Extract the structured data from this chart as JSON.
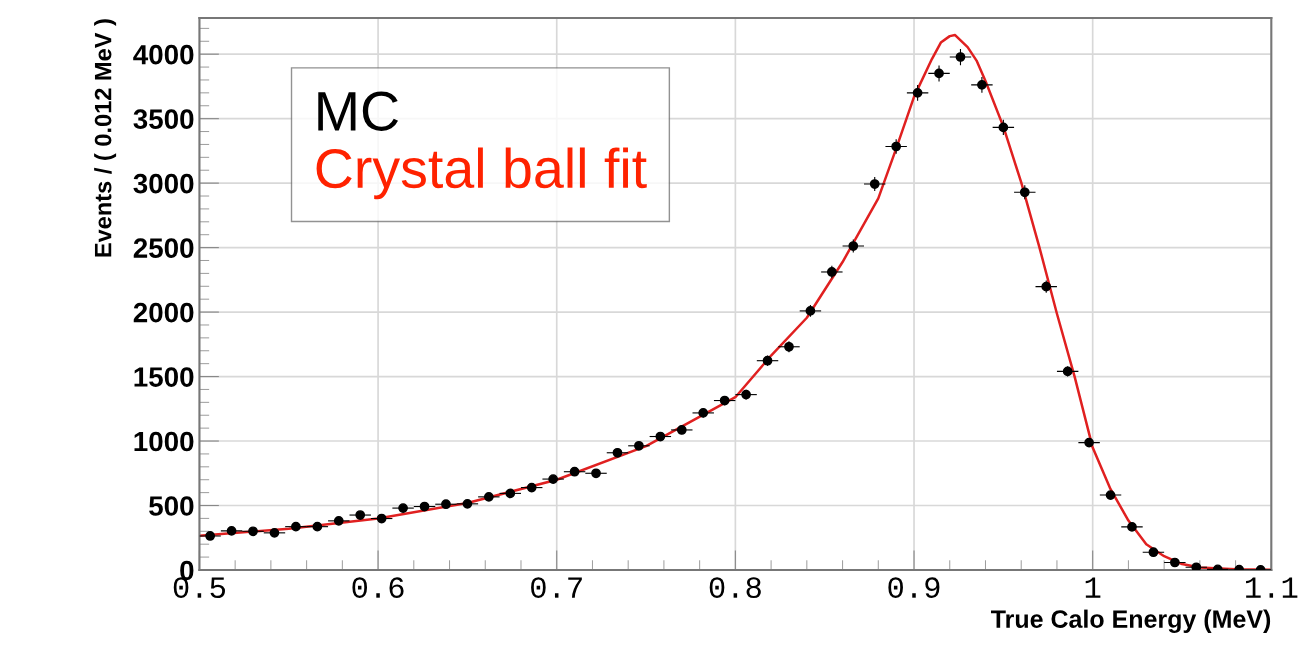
{
  "chart_data": {
    "type": "scatter",
    "xlabel": "True Calo Energy (MeV)",
    "ylabel": "Events / ( 0.012 MeV )",
    "x": [
      0.506,
      0.518,
      0.53,
      0.542,
      0.554,
      0.566,
      0.578,
      0.59,
      0.602,
      0.614,
      0.626,
      0.638,
      0.65,
      0.662,
      0.674,
      0.686,
      0.698,
      0.71,
      0.722,
      0.734,
      0.746,
      0.758,
      0.77,
      0.782,
      0.794,
      0.806,
      0.818,
      0.83,
      0.842,
      0.854,
      0.866,
      0.878,
      0.89,
      0.902,
      0.914,
      0.926,
      0.938,
      0.95,
      0.962,
      0.974,
      0.986,
      0.998,
      1.01,
      1.022,
      1.034,
      1.046,
      1.058,
      1.07,
      1.082,
      1.094
    ],
    "series": [
      {
        "name": "MC",
        "color": "#000000",
        "marker": "circle",
        "values": [
          264,
          303,
          300,
          288,
          336,
          336,
          381,
          426,
          399,
          480,
          492,
          510,
          513,
          567,
          594,
          639,
          705,
          762,
          750,
          909,
          963,
          1035,
          1086,
          1218,
          1314,
          1360,
          1623,
          1731,
          2009,
          2311,
          2512,
          2993,
          3284,
          3700,
          3851,
          3978,
          3762,
          3432,
          2929,
          2197,
          1540,
          988,
          581,
          334,
          138,
          58,
          21,
          5,
          2,
          1
        ],
        "errors": [
          16,
          17,
          17,
          17,
          18,
          18,
          20,
          21,
          20,
          22,
          22,
          23,
          23,
          24,
          24,
          25,
          27,
          28,
          27,
          30,
          31,
          32,
          33,
          35,
          36,
          37,
          40,
          42,
          45,
          48,
          50,
          55,
          57,
          61,
          62,
          63,
          61,
          59,
          54,
          47,
          39,
          31,
          24,
          18,
          12,
          8,
          5,
          2,
          1,
          1
        ],
        "xerrors": [
          0.006,
          0.006,
          0.006,
          0.006,
          0.006,
          0.006,
          0.006,
          0.006,
          0.006,
          0.006,
          0.006,
          0.006,
          0.006,
          0.006,
          0.006,
          0.006,
          0.006,
          0.006,
          0.006,
          0.006,
          0.006,
          0.006,
          0.006,
          0.006,
          0.006,
          0.006,
          0.006,
          0.006,
          0.006,
          0.006,
          0.006,
          0.006,
          0.006,
          0.006,
          0.006,
          0.006,
          0.006,
          0.006,
          0.006,
          0.006,
          0.006,
          0.006,
          0.006,
          0.006,
          0.006,
          0.006,
          0.006,
          0.006,
          0.006,
          0.006
        ]
      },
      {
        "name": "Crystal ball fit",
        "type": "line",
        "color": "#e02020",
        "marker": "none",
        "line_style": "solid",
        "x": [
          0.5,
          0.55,
          0.6,
          0.65,
          0.7,
          0.75,
          0.8,
          0.82,
          0.84,
          0.86,
          0.88,
          0.89,
          0.9,
          0.91,
          0.915,
          0.92,
          0.923,
          0.93,
          0.935,
          0.94,
          0.95,
          0.96,
          0.97,
          0.98,
          0.99,
          1.0,
          1.01,
          1.02,
          1.03,
          1.04,
          1.05,
          1.06,
          1.08,
          1.1
        ],
        "values": [
          265,
          320,
          400,
          520,
          700,
          960,
          1340,
          1663,
          1956,
          2388,
          2882,
          3268,
          3669,
          3962,
          4090,
          4140,
          4148,
          4055,
          3950,
          3792,
          3438,
          3006,
          2512,
          1987,
          1494,
          949,
          627,
          383,
          199,
          107,
          46,
          20,
          5,
          2
        ]
      }
    ],
    "xlim": [
      0.5,
      1.1
    ],
    "xticks": [
      0.5,
      0.6,
      0.7,
      0.8,
      0.9,
      1,
      1.1
    ],
    "ylim": [
      0,
      4280
    ],
    "yticks": [
      0,
      500,
      1000,
      1500,
      2000,
      2500,
      3000,
      3500,
      4000
    ],
    "grid": true,
    "legend": "top left"
  }
}
